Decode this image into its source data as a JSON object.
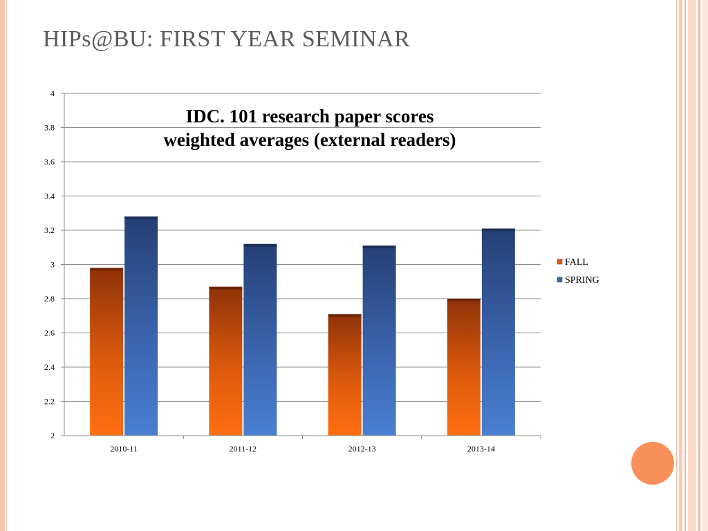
{
  "slide": {
    "title": "HIPs@BU: FIRST YEAR SEMINAR"
  },
  "chart_data": {
    "type": "bar",
    "title_lines": [
      "IDC. 101 research paper scores",
      "weighted averages (external readers)"
    ],
    "categories": [
      "2010-11",
      "2011-12",
      "2012-13",
      "2013-14"
    ],
    "series": [
      {
        "name": "FALL",
        "values": [
          2.98,
          2.87,
          2.71,
          2.8
        ],
        "color": "#e35b0e"
      },
      {
        "name": "SPRING",
        "values": [
          3.28,
          3.12,
          3.11,
          3.21
        ],
        "color": "#3a68b2"
      }
    ],
    "ylim": [
      2,
      4
    ],
    "yticks": [
      "2",
      "2.2",
      "2.4",
      "2.6",
      "2.8",
      "3",
      "3.2",
      "3.4",
      "3.6",
      "3.8",
      "4"
    ],
    "grid": true,
    "legend_position": "right",
    "xlabel": "",
    "ylabel": ""
  }
}
